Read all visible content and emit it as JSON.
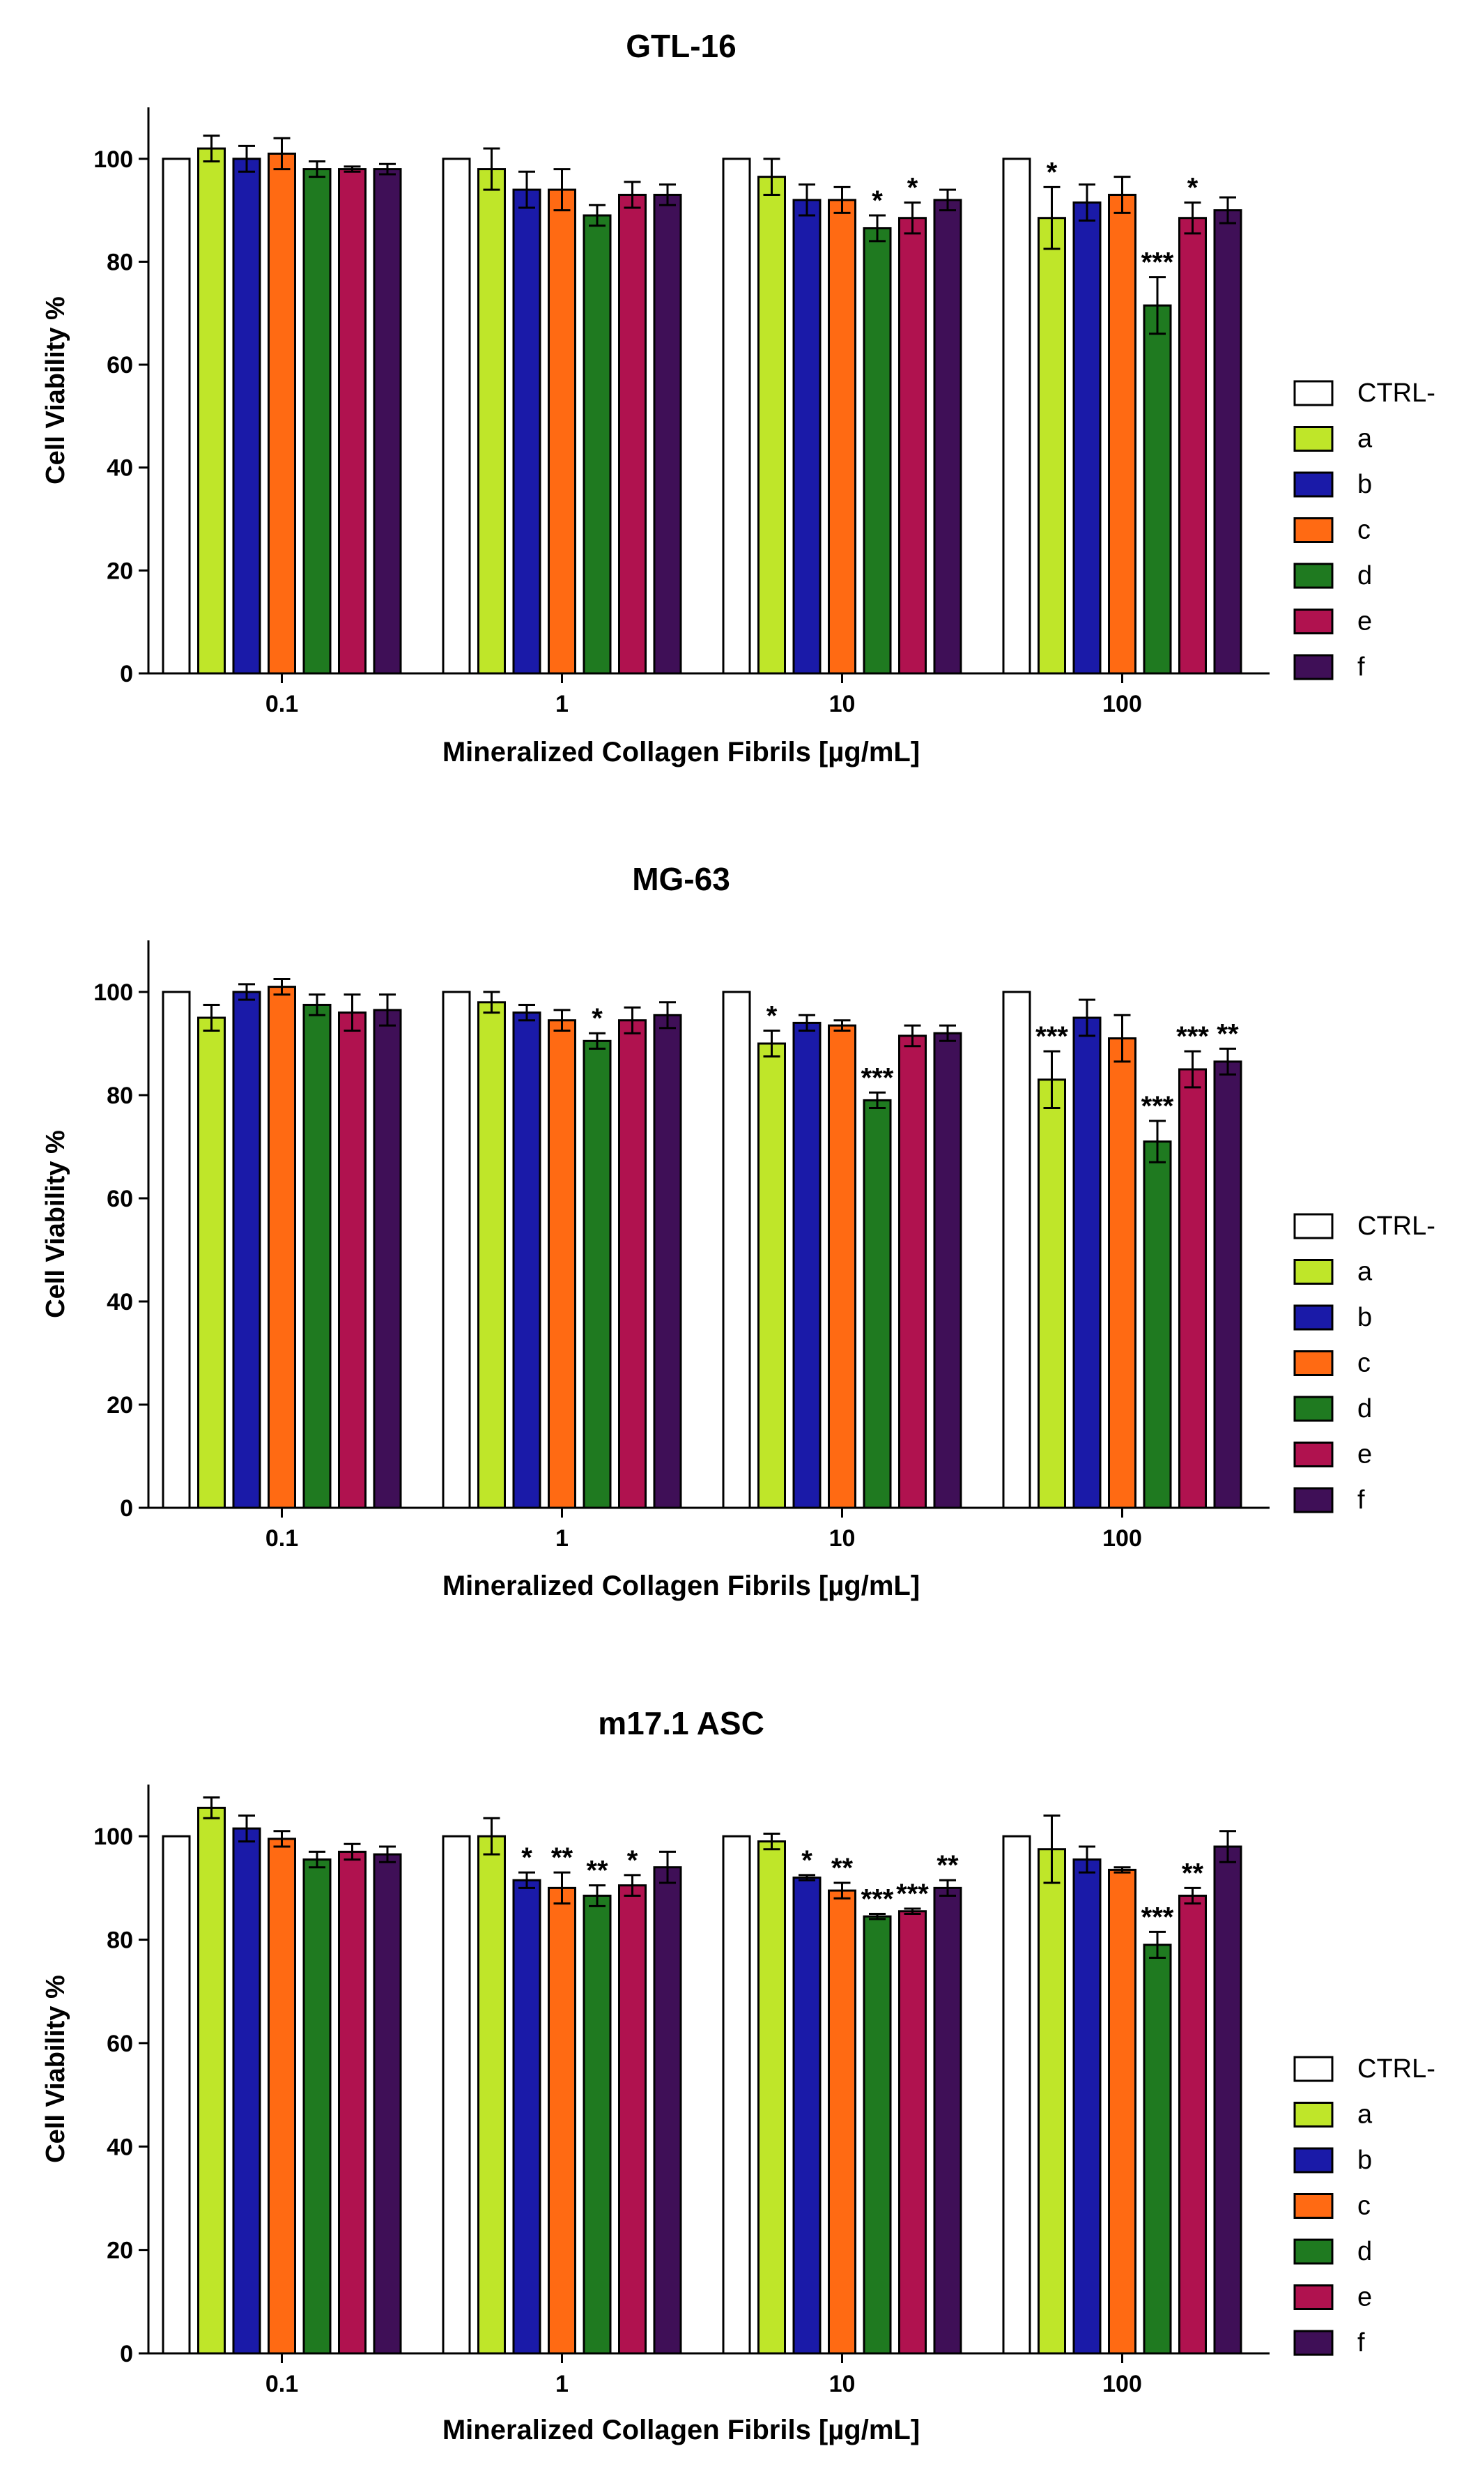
{
  "figure": {
    "legend_labels": [
      "CTRL-",
      "a",
      "b",
      "c",
      "d",
      "e",
      "f"
    ],
    "colors": [
      "#ffffff",
      "#bfe629",
      "#1a1aa8",
      "#ff6a13",
      "#1f7a20",
      "#b0124f",
      "#3f0f57"
    ],
    "xlabel": "Mineralized Collagen Fibrils [µg/mL]",
    "ylabel": "Cell Viability %"
  },
  "chart_data": [
    {
      "type": "bar",
      "title": "GTL-16",
      "xlabel": "Mineralized Collagen Fibrils [µg/mL]",
      "ylabel": "Cell Viability %",
      "ylim": [
        0,
        110
      ],
      "yticks": [
        0,
        20,
        40,
        60,
        80,
        100
      ],
      "categories": [
        "0.1",
        "1",
        "10",
        "100"
      ],
      "series": [
        {
          "name": "CTRL-",
          "color": "#ffffff",
          "values": [
            100,
            100,
            100,
            100
          ],
          "errors": [
            0,
            0,
            0,
            0
          ],
          "sig": [
            "",
            "",
            "",
            ""
          ]
        },
        {
          "name": "a",
          "color": "#bfe629",
          "values": [
            102,
            98,
            96.5,
            88.5
          ],
          "errors": [
            2.5,
            4,
            3.5,
            6
          ],
          "sig": [
            "",
            "",
            "",
            "*"
          ]
        },
        {
          "name": "b",
          "color": "#1a1aa8",
          "values": [
            100,
            94,
            92,
            91.5
          ],
          "errors": [
            2.5,
            3.5,
            3,
            3.5
          ],
          "sig": [
            "",
            "",
            "",
            ""
          ]
        },
        {
          "name": "c",
          "color": "#ff6a13",
          "values": [
            101,
            94,
            92,
            93
          ],
          "errors": [
            3,
            4,
            2.5,
            3.5
          ],
          "sig": [
            "",
            "",
            "",
            ""
          ]
        },
        {
          "name": "d",
          "color": "#1f7a20",
          "values": [
            98,
            89,
            86.5,
            71.5
          ],
          "errors": [
            1.5,
            2,
            2.5,
            5.5
          ],
          "sig": [
            "",
            "",
            "*",
            "***"
          ]
        },
        {
          "name": "e",
          "color": "#b0124f",
          "values": [
            98,
            93,
            88.5,
            88.5
          ],
          "errors": [
            0.5,
            2.5,
            3,
            3
          ],
          "sig": [
            "",
            "",
            "*",
            "*"
          ]
        },
        {
          "name": "f",
          "color": "#3f0f57",
          "values": [
            98,
            93,
            92,
            90
          ],
          "errors": [
            1,
            2,
            2,
            2.5
          ],
          "sig": [
            "",
            "",
            "",
            ""
          ]
        }
      ]
    },
    {
      "type": "bar",
      "title": "MG-63",
      "xlabel": "Mineralized Collagen Fibrils [µg/mL]",
      "ylabel": "Cell Viability %",
      "ylim": [
        0,
        110
      ],
      "yticks": [
        0,
        20,
        40,
        60,
        80,
        100
      ],
      "categories": [
        "0.1",
        "1",
        "10",
        "100"
      ],
      "series": [
        {
          "name": "CTRL-",
          "color": "#ffffff",
          "values": [
            100,
            100,
            100,
            100
          ],
          "errors": [
            0,
            0,
            0,
            0
          ],
          "sig": [
            "",
            "",
            "",
            ""
          ]
        },
        {
          "name": "a",
          "color": "#bfe629",
          "values": [
            95,
            98,
            90,
            83
          ],
          "errors": [
            2.5,
            2,
            2.5,
            5.5
          ],
          "sig": [
            "",
            "",
            "*",
            "***"
          ]
        },
        {
          "name": "b",
          "color": "#1a1aa8",
          "values": [
            100,
            96,
            94,
            95
          ],
          "errors": [
            1.5,
            1.5,
            1.5,
            3.5
          ],
          "sig": [
            "",
            "",
            "",
            ""
          ]
        },
        {
          "name": "c",
          "color": "#ff6a13",
          "values": [
            101,
            94.5,
            93.5,
            91
          ],
          "errors": [
            1.5,
            2,
            1,
            4.5
          ],
          "sig": [
            "",
            "",
            "",
            ""
          ]
        },
        {
          "name": "d",
          "color": "#1f7a20",
          "values": [
            97.5,
            90.5,
            79,
            71
          ],
          "errors": [
            2,
            1.5,
            1.5,
            4
          ],
          "sig": [
            "",
            "*",
            "***",
            "***"
          ]
        },
        {
          "name": "e",
          "color": "#b0124f",
          "values": [
            96,
            94.5,
            91.5,
            85
          ],
          "errors": [
            3.5,
            2.5,
            2,
            3.5
          ],
          "sig": [
            "",
            "",
            "",
            "***"
          ]
        },
        {
          "name": "f",
          "color": "#3f0f57",
          "values": [
            96.5,
            95.5,
            92,
            86.5
          ],
          "errors": [
            3,
            2.5,
            1.5,
            2.5
          ],
          "sig": [
            "",
            "",
            "",
            "**"
          ]
        }
      ]
    },
    {
      "type": "bar",
      "title": "m17.1 ASC",
      "xlabel": "Mineralized Collagen Fibrils [µg/mL]",
      "ylabel": "Cell Viability %",
      "ylim": [
        0,
        110
      ],
      "yticks": [
        0,
        20,
        40,
        60,
        80,
        100
      ],
      "categories": [
        "0.1",
        "1",
        "10",
        "100"
      ],
      "series": [
        {
          "name": "CTRL-",
          "color": "#ffffff",
          "values": [
            100,
            100,
            100,
            100
          ],
          "errors": [
            0,
            0,
            0,
            0
          ],
          "sig": [
            "",
            "",
            "",
            ""
          ]
        },
        {
          "name": "a",
          "color": "#bfe629",
          "values": [
            105.5,
            100,
            99,
            97.5
          ],
          "errors": [
            2,
            3.5,
            1.5,
            6.5
          ],
          "sig": [
            "",
            "",
            "",
            ""
          ]
        },
        {
          "name": "b",
          "color": "#1a1aa8",
          "values": [
            101.5,
            91.5,
            92,
            95.5
          ],
          "errors": [
            2.5,
            1.5,
            0.5,
            2.5
          ],
          "sig": [
            "",
            "*",
            "*",
            ""
          ]
        },
        {
          "name": "c",
          "color": "#ff6a13",
          "values": [
            99.5,
            90,
            89.5,
            93.5
          ],
          "errors": [
            1.5,
            3,
            1.5,
            0.5
          ],
          "sig": [
            "",
            "**",
            "**",
            ""
          ]
        },
        {
          "name": "d",
          "color": "#1f7a20",
          "values": [
            95.5,
            88.5,
            84.5,
            79
          ],
          "errors": [
            1.5,
            2,
            0.5,
            2.5
          ],
          "sig": [
            "",
            "**",
            "***",
            "***"
          ]
        },
        {
          "name": "e",
          "color": "#b0124f",
          "values": [
            97,
            90.5,
            85.5,
            88.5
          ],
          "errors": [
            1.5,
            2,
            0.5,
            1.5
          ],
          "sig": [
            "",
            "*",
            "***",
            "**"
          ]
        },
        {
          "name": "f",
          "color": "#3f0f57",
          "values": [
            96.5,
            94,
            90,
            98
          ],
          "errors": [
            1.5,
            3,
            1.5,
            3
          ],
          "sig": [
            "",
            "",
            "**",
            ""
          ]
        }
      ]
    }
  ]
}
